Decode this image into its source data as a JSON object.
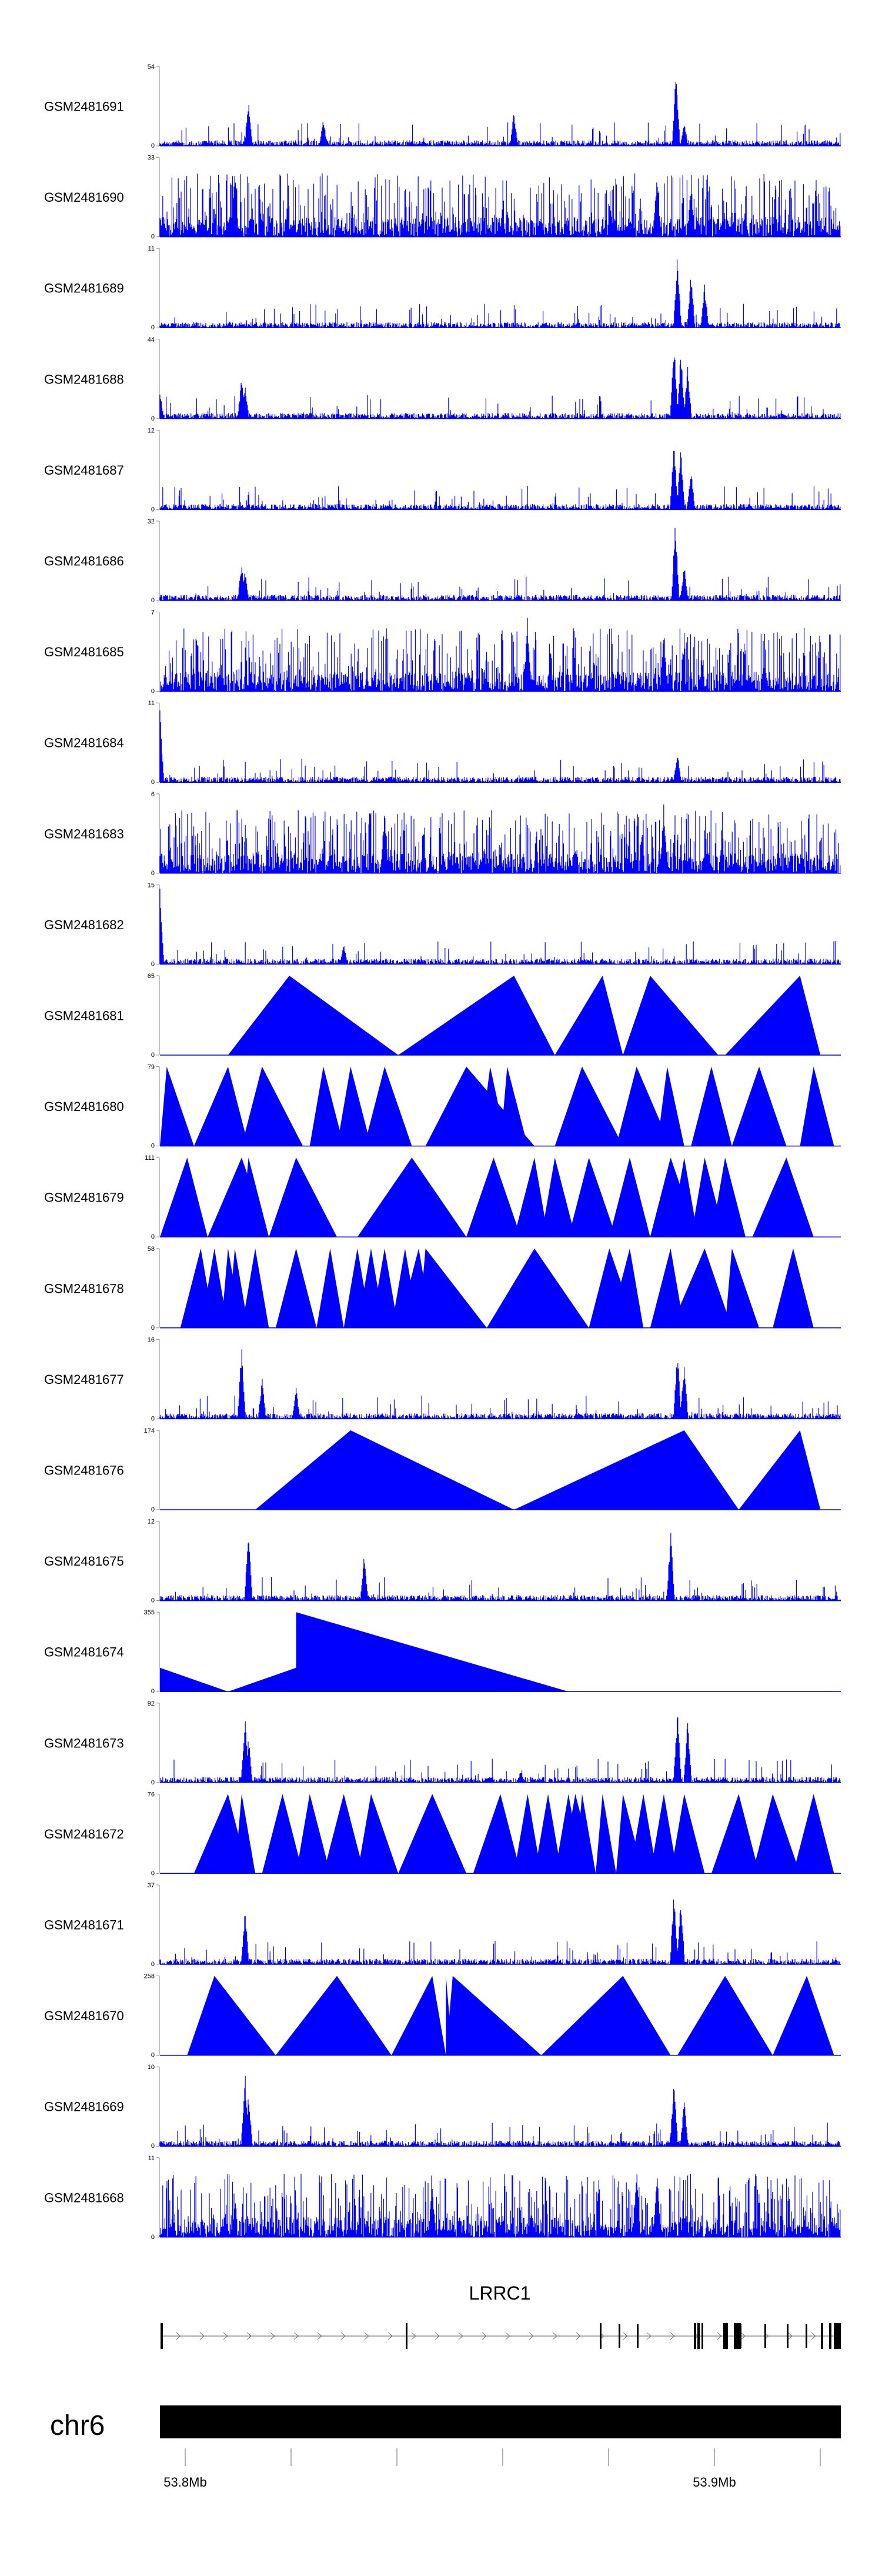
{
  "chart_data": {
    "type": "area",
    "description_kind": "genome-coverage-tracks",
    "chromosome": "chr6",
    "gene": "LRRC1",
    "x_ticks": [
      "53.8Mb",
      "53.9Mb"
    ],
    "colors": {
      "track": "#0000ff",
      "ideogram": "#000000",
      "gene": "#000000"
    },
    "tracks": [
      {
        "name": "GSM2481691",
        "ymax": "54",
        "ymin": "0",
        "kind": "noise",
        "peaks": [
          [
            0.13,
            0.6
          ],
          [
            0.24,
            0.35
          ],
          [
            0.52,
            0.45
          ],
          [
            0.758,
            1.0
          ],
          [
            0.77,
            0.3
          ]
        ]
      },
      {
        "name": "GSM2481690",
        "ymax": "33",
        "ymin": "0",
        "kind": "dense",
        "peaks": [
          [
            0.11,
            0.9
          ],
          [
            0.73,
            0.8
          ],
          [
            0.78,
            0.7
          ]
        ]
      },
      {
        "name": "GSM2481689",
        "ymax": "11",
        "ymin": "0",
        "kind": "noise",
        "peaks": [
          [
            0.76,
            0.95
          ],
          [
            0.78,
            0.7
          ],
          [
            0.8,
            0.55
          ]
        ]
      },
      {
        "name": "GSM2481688",
        "ymax": "44",
        "ymin": "0",
        "kind": "noise",
        "peaks": [
          [
            0.0,
            0.35
          ],
          [
            0.12,
            0.55
          ],
          [
            0.125,
            0.45
          ],
          [
            0.755,
            1.0
          ],
          [
            0.765,
            0.9
          ],
          [
            0.775,
            0.7
          ]
        ]
      },
      {
        "name": "GSM2481687",
        "ymax": "12",
        "ymin": "0",
        "kind": "noise",
        "peaks": [
          [
            0.755,
            0.95
          ],
          [
            0.765,
            0.8
          ],
          [
            0.78,
            0.55
          ]
        ]
      },
      {
        "name": "GSM2481686",
        "ymax": "32",
        "ymin": "0",
        "kind": "noise",
        "peaks": [
          [
            0.12,
            0.5
          ],
          [
            0.125,
            0.4
          ],
          [
            0.757,
            1.0
          ],
          [
            0.77,
            0.45
          ]
        ]
      },
      {
        "name": "GSM2481685",
        "ymax": "7",
        "ymin": "0",
        "kind": "dense",
        "peaks": [
          [
            0.54,
            0.95
          ],
          [
            0.74,
            0.8
          ]
        ]
      },
      {
        "name": "GSM2481684",
        "ymax": "11",
        "ymin": "0",
        "kind": "noise",
        "peaks": [
          [
            0.0,
            0.95
          ],
          [
            0.76,
            0.4
          ]
        ]
      },
      {
        "name": "GSM2481683",
        "ymax": "6",
        "ymin": "0",
        "kind": "dense",
        "peaks": [
          [
            0.74,
            0.9
          ],
          [
            0.33,
            0.85
          ]
        ]
      },
      {
        "name": "GSM2481682",
        "ymax": "15",
        "ymin": "0",
        "kind": "noise",
        "peaks": [
          [
            0.0,
            0.95
          ],
          [
            0.27,
            0.25
          ]
        ]
      },
      {
        "name": "GSM2481681",
        "ymax": "65",
        "ymin": "0",
        "kind": "tri",
        "tris": [
          [
            0.1,
            0.19,
            0.35
          ],
          [
            0.35,
            0.52,
            0.58
          ],
          [
            0.58,
            0.65,
            0.68
          ],
          [
            0.68,
            0.72,
            0.82
          ],
          [
            0.83,
            0.94,
            0.97
          ]
        ]
      },
      {
        "name": "GSM2481680",
        "ymax": "79",
        "ymin": "0",
        "kind": "tri",
        "tris": [
          [
            0.0,
            0.01,
            0.05
          ],
          [
            0.05,
            0.1,
            0.13
          ],
          [
            0.12,
            0.15,
            0.21
          ],
          [
            0.22,
            0.24,
            0.27
          ],
          [
            0.26,
            0.28,
            0.31
          ],
          [
            0.3,
            0.33,
            0.37
          ],
          [
            0.39,
            0.45,
            0.55
          ],
          [
            0.47,
            0.485,
            0.51
          ],
          [
            0.5,
            0.51,
            0.54
          ],
          [
            0.58,
            0.62,
            0.68
          ],
          [
            0.67,
            0.7,
            0.75
          ],
          [
            0.73,
            0.745,
            0.77
          ],
          [
            0.78,
            0.81,
            0.84
          ],
          [
            0.84,
            0.88,
            0.92
          ],
          [
            0.94,
            0.96,
            0.99
          ]
        ]
      },
      {
        "name": "GSM2481679",
        "ymax": "111",
        "ymin": "0",
        "kind": "tri",
        "tris": [
          [
            0.0,
            0.04,
            0.07
          ],
          [
            0.07,
            0.12,
            0.16
          ],
          [
            0.12,
            0.13,
            0.16
          ],
          [
            0.16,
            0.2,
            0.26
          ],
          [
            0.29,
            0.37,
            0.45
          ],
          [
            0.45,
            0.49,
            0.53
          ],
          [
            0.52,
            0.55,
            0.57
          ],
          [
            0.56,
            0.58,
            0.61
          ],
          [
            0.6,
            0.63,
            0.67
          ],
          [
            0.66,
            0.69,
            0.72
          ],
          [
            0.72,
            0.75,
            0.79
          ],
          [
            0.75,
            0.77,
            0.79
          ],
          [
            0.78,
            0.8,
            0.83
          ],
          [
            0.81,
            0.83,
            0.86
          ],
          [
            0.87,
            0.92,
            0.96
          ]
        ]
      },
      {
        "name": "GSM2481678",
        "ymax": "58",
        "ymin": "0",
        "kind": "tri",
        "tris": [
          [
            0.03,
            0.06,
            0.08
          ],
          [
            0.06,
            0.08,
            0.1
          ],
          [
            0.09,
            0.1,
            0.12
          ],
          [
            0.1,
            0.11,
            0.13
          ],
          [
            0.12,
            0.14,
            0.16
          ],
          [
            0.17,
            0.2,
            0.23
          ],
          [
            0.23,
            0.25,
            0.27
          ],
          [
            0.27,
            0.29,
            0.31
          ],
          [
            0.29,
            0.31,
            0.33
          ],
          [
            0.31,
            0.33,
            0.35
          ],
          [
            0.34,
            0.36,
            0.38
          ],
          [
            0.35,
            0.38,
            0.4
          ],
          [
            0.38,
            0.39,
            0.48
          ],
          [
            0.48,
            0.55,
            0.63
          ],
          [
            0.63,
            0.66,
            0.7
          ],
          [
            0.66,
            0.69,
            0.71
          ],
          [
            0.72,
            0.75,
            0.77
          ],
          [
            0.75,
            0.8,
            0.84
          ],
          [
            0.83,
            0.84,
            0.88
          ],
          [
            0.9,
            0.93,
            0.96
          ]
        ]
      },
      {
        "name": "GSM2481677",
        "ymax": "16",
        "ymin": "0",
        "kind": "noise",
        "peaks": [
          [
            0.12,
            0.95
          ],
          [
            0.15,
            0.55
          ],
          [
            0.2,
            0.4
          ],
          [
            0.76,
            0.9
          ],
          [
            0.77,
            0.75
          ]
        ]
      },
      {
        "name": "GSM2481676",
        "ymax": "174",
        "ymin": "0",
        "kind": "tri",
        "tris": [
          [
            0.14,
            0.28,
            0.52
          ],
          [
            0.52,
            0.77,
            0.85
          ],
          [
            0.85,
            0.94,
            0.97
          ]
        ]
      },
      {
        "name": "GSM2481675",
        "ymax": "12",
        "ymin": "0",
        "kind": "noise",
        "peaks": [
          [
            0.13,
            0.95
          ],
          [
            0.3,
            0.6
          ],
          [
            0.75,
            0.9
          ]
        ]
      },
      {
        "name": "GSM2481674",
        "ymax": "355",
        "ymin": "0",
        "kind": "poly",
        "pts": [
          [
            0.0,
            0.3
          ],
          [
            0.1,
            0.0
          ],
          [
            0.2,
            0.3
          ],
          [
            0.2,
            1.0
          ],
          [
            0.6,
            0.0
          ]
        ]
      },
      {
        "name": "GSM2481673",
        "ymax": "92",
        "ymin": "0",
        "kind": "noise",
        "peaks": [
          [
            0.125,
            0.85
          ],
          [
            0.13,
            0.6
          ],
          [
            0.76,
            0.95
          ],
          [
            0.775,
            0.8
          ],
          [
            0.53,
            0.15
          ]
        ]
      },
      {
        "name": "GSM2481672",
        "ymax": "76",
        "ymin": "0",
        "kind": "tri",
        "tris": [
          [
            0.05,
            0.1,
            0.13
          ],
          [
            0.11,
            0.12,
            0.14
          ],
          [
            0.15,
            0.18,
            0.21
          ],
          [
            0.2,
            0.22,
            0.25
          ],
          [
            0.24,
            0.27,
            0.3
          ],
          [
            0.29,
            0.31,
            0.35
          ],
          [
            0.35,
            0.4,
            0.45
          ],
          [
            0.46,
            0.5,
            0.53
          ],
          [
            0.52,
            0.54,
            0.56
          ],
          [
            0.55,
            0.57,
            0.59
          ],
          [
            0.58,
            0.6,
            0.62
          ],
          [
            0.59,
            0.61,
            0.63
          ],
          [
            0.6,
            0.61,
            0.64
          ],
          [
            0.61,
            0.62,
            0.64
          ],
          [
            0.64,
            0.65,
            0.67
          ],
          [
            0.67,
            0.68,
            0.71
          ],
          [
            0.69,
            0.71,
            0.73
          ],
          [
            0.72,
            0.74,
            0.76
          ],
          [
            0.75,
            0.77,
            0.8
          ],
          [
            0.81,
            0.85,
            0.88
          ],
          [
            0.87,
            0.9,
            0.94
          ],
          [
            0.93,
            0.96,
            0.99
          ]
        ]
      },
      {
        "name": "GSM2481671",
        "ymax": "37",
        "ymin": "0",
        "kind": "noise",
        "peaks": [
          [
            0.125,
            0.7
          ],
          [
            0.755,
            0.95
          ],
          [
            0.765,
            0.85
          ]
        ]
      },
      {
        "name": "GSM2481670",
        "ymax": "258",
        "ymin": "0",
        "kind": "tri",
        "tris": [
          [
            0.04,
            0.08,
            0.17
          ],
          [
            0.17,
            0.26,
            0.34
          ],
          [
            0.34,
            0.4,
            0.42
          ],
          [
            0.42,
            0.42,
            0.43
          ],
          [
            0.42,
            0.43,
            0.56
          ],
          [
            0.56,
            0.68,
            0.75
          ],
          [
            0.76,
            0.83,
            0.9
          ],
          [
            0.9,
            0.95,
            0.99
          ]
        ]
      },
      {
        "name": "GSM2481669",
        "ymax": "10",
        "ymin": "0",
        "kind": "noise",
        "peaks": [
          [
            0.125,
            0.95
          ],
          [
            0.13,
            0.7
          ],
          [
            0.755,
            0.9
          ],
          [
            0.77,
            0.6
          ]
        ]
      },
      {
        "name": "GSM2481668",
        "ymax": "11",
        "ymin": "0",
        "kind": "dense",
        "peaks": [
          [
            0.7,
            0.95
          ],
          [
            0.73,
            0.85
          ],
          [
            0.4,
            0.7
          ]
        ]
      }
    ]
  }
}
